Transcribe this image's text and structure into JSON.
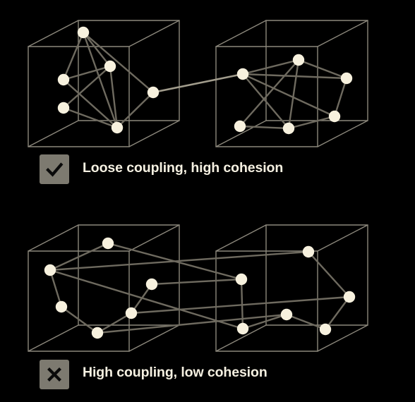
{
  "colors": {
    "background": "#000000",
    "box_edge": "#8c887c",
    "link": "#6e6a5f",
    "link_highlight": "#a19c8c",
    "node": "#f7f1de",
    "badge_bg": "#7d7a70",
    "badge_icon": "#0a0a0a",
    "caption_text": "#f5f0e1"
  },
  "panels": [
    {
      "name": "good",
      "caption": "Loose coupling, high cohesion",
      "icon": "check-icon"
    },
    {
      "name": "bad",
      "caption": "High coupling, low cohesion",
      "icon": "cross-icon"
    }
  ]
}
